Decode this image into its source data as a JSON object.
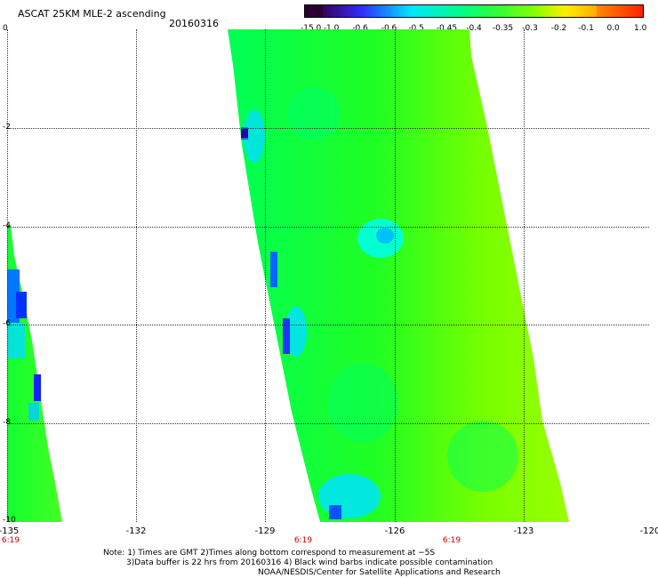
{
  "header": {
    "title": "ASCAT 25KM MLE-2 ascending",
    "date": "20160316"
  },
  "colorbar": {
    "labels": [
      "-15.0",
      "-1.0",
      "-0.6",
      "-0.6",
      "-0.5",
      "-0.45",
      "-0.4",
      "-0.35",
      "-0.3",
      "-0.2",
      "-0.1",
      "0.0",
      "1.0"
    ],
    "colors": [
      "#2a0033",
      "#4b007d",
      "#2f2fff",
      "#0096ff",
      "#00e5ff",
      "#00ffaa",
      "#00ff55",
      "#33ff33",
      "#88ff00",
      "#ccff00",
      "#ffee00",
      "#ff8800",
      "#ff2200"
    ]
  },
  "axes": {
    "y_ticks": [
      "0",
      "-2",
      "-4",
      "-6",
      "-8",
      "-10"
    ],
    "x_ticks": [
      "-135",
      "-132",
      "-129",
      "-126",
      "-123",
      "-120"
    ],
    "time_labels": [
      "6:19",
      "6:19",
      "6:19"
    ]
  },
  "notes": [
    "Note: 1) Times are GMT 2)Times along bottom correspond to measurement at −5S",
    "3)Data buffer is 22 hrs from 20160316 4) Black wind barbs indicate possible contamination",
    "NOAA/NESDIS/Center for Satellite Applications and Research"
  ]
}
